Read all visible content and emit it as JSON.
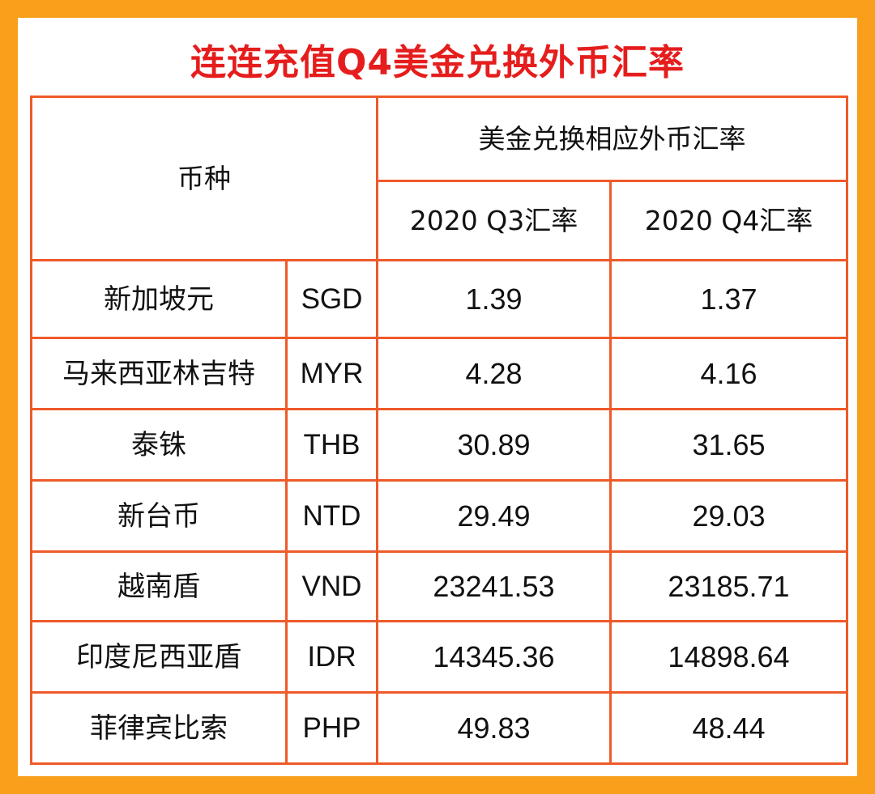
{
  "title": "连连充值Q4美金兑换外币汇率",
  "table": {
    "currency_header": "币种",
    "group_header": "美金兑换相应外币汇率",
    "q3_header": "2020 Q3汇率",
    "q4_header": "2020 Q4汇率",
    "rows": [
      {
        "name": "新加坡元",
        "code": "SGD",
        "q3": "1.39",
        "q4": "1.37"
      },
      {
        "name": "马来西亚林吉特",
        "code": "MYR",
        "q3": "4.28",
        "q4": "4.16"
      },
      {
        "name": "泰铢",
        "code": "THB",
        "q3": "30.89",
        "q4": "31.65"
      },
      {
        "name": "新台币",
        "code": "NTD",
        "q3": "29.49",
        "q4": "29.03"
      },
      {
        "name": "越南盾",
        "code": "VND",
        "q3": "23241.53",
        "q4": "23185.71"
      },
      {
        "name": "印度尼西亚盾",
        "code": "IDR",
        "q3": "14345.36",
        "q4": "14898.64"
      },
      {
        "name": "菲律宾比索",
        "code": "PHP",
        "q3": "49.83",
        "q4": "48.44"
      }
    ]
  },
  "colors": {
    "frame": "#fa9f1b",
    "title": "#e51d1d",
    "table_border": "#ee5a2a"
  }
}
